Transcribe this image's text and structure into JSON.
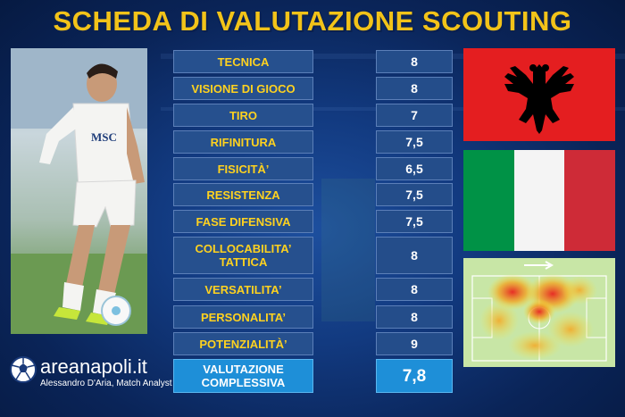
{
  "title": "SCHEDA DI VALUTAZIONE SCOUTING",
  "ratings": [
    {
      "label": "TECNICA",
      "value": "8"
    },
    {
      "label": "VISIONE DI GIOCO",
      "value": "8"
    },
    {
      "label": "TIRO",
      "value": "7"
    },
    {
      "label": "RIFINITURA",
      "value": "7,5"
    },
    {
      "label": "FISICITÀ’",
      "value": "6,5"
    },
    {
      "label": "RESISTENZA",
      "value": "7,5"
    },
    {
      "label": "FASE DIFENSIVA",
      "value": "7,5"
    },
    {
      "label": "COLLOCABILITA’ TATTICA",
      "value": "8"
    },
    {
      "label": "VERSATILITA’",
      "value": "8"
    },
    {
      "label": "PERSONALITA’",
      "value": "8"
    },
    {
      "label": "POTENZIALITÀ’",
      "value": "9"
    }
  ],
  "total": {
    "label": "VALUTAZIONE COMPLESSIVA",
    "value": "7,8"
  },
  "flags": [
    "albania-flag",
    "italy-flag"
  ],
  "jersey_text": "MSC",
  "brand": {
    "name": "areanapoli.it",
    "author": "Alessandro D'Aria, Match Analyst"
  },
  "colors": {
    "title": "#f2c319",
    "label_text": "#ffd21f",
    "cell_bg": "#26508e",
    "total_bg": "#1e8fd8",
    "albania_red": "#e41e20",
    "italy_green": "#009246",
    "italy_red": "#ce2b37"
  }
}
